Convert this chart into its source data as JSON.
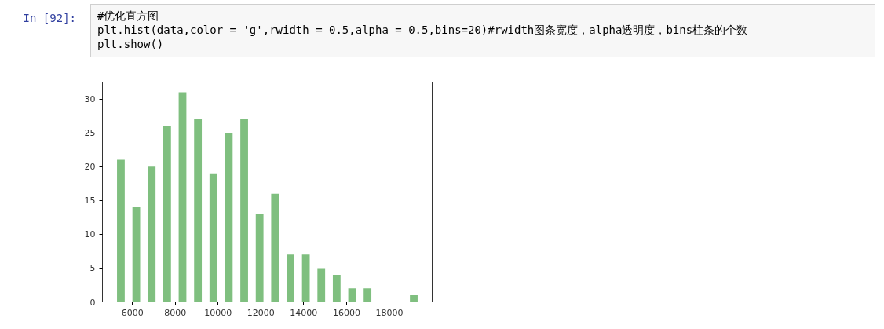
{
  "chart_data": {
    "type": "histogram",
    "bins": [
      5100,
      5820,
      6540,
      7260,
      7980,
      8700,
      9420,
      10140,
      10860,
      11580,
      12300,
      13020,
      13740,
      14460,
      15180,
      15900,
      16620,
      17340,
      18060,
      18780,
      19500
    ],
    "values": [
      21,
      14,
      20,
      26,
      31,
      27,
      19,
      25,
      27,
      13,
      16,
      7,
      7,
      5,
      4,
      2,
      2,
      0,
      0,
      1
    ],
    "color": "#7fbf7f",
    "xlim": [
      4600,
      20000
    ],
    "xticks": [
      6000,
      8000,
      10000,
      12000,
      14000,
      16000,
      18000
    ],
    "ylim": [
      0,
      32.5
    ],
    "yticks": [
      0,
      5,
      10,
      15,
      20,
      25,
      30
    ],
    "grid": false,
    "annotations": [
      "In [92]:",
      "#优化直方图",
      "plt.hist(data,color = 'g',rwidth = 0.5,alpha = 0.5,bins=20)#rwidth图条宽度，alpha透明度，bins柱条的个数",
      "plt.show()"
    ]
  }
}
